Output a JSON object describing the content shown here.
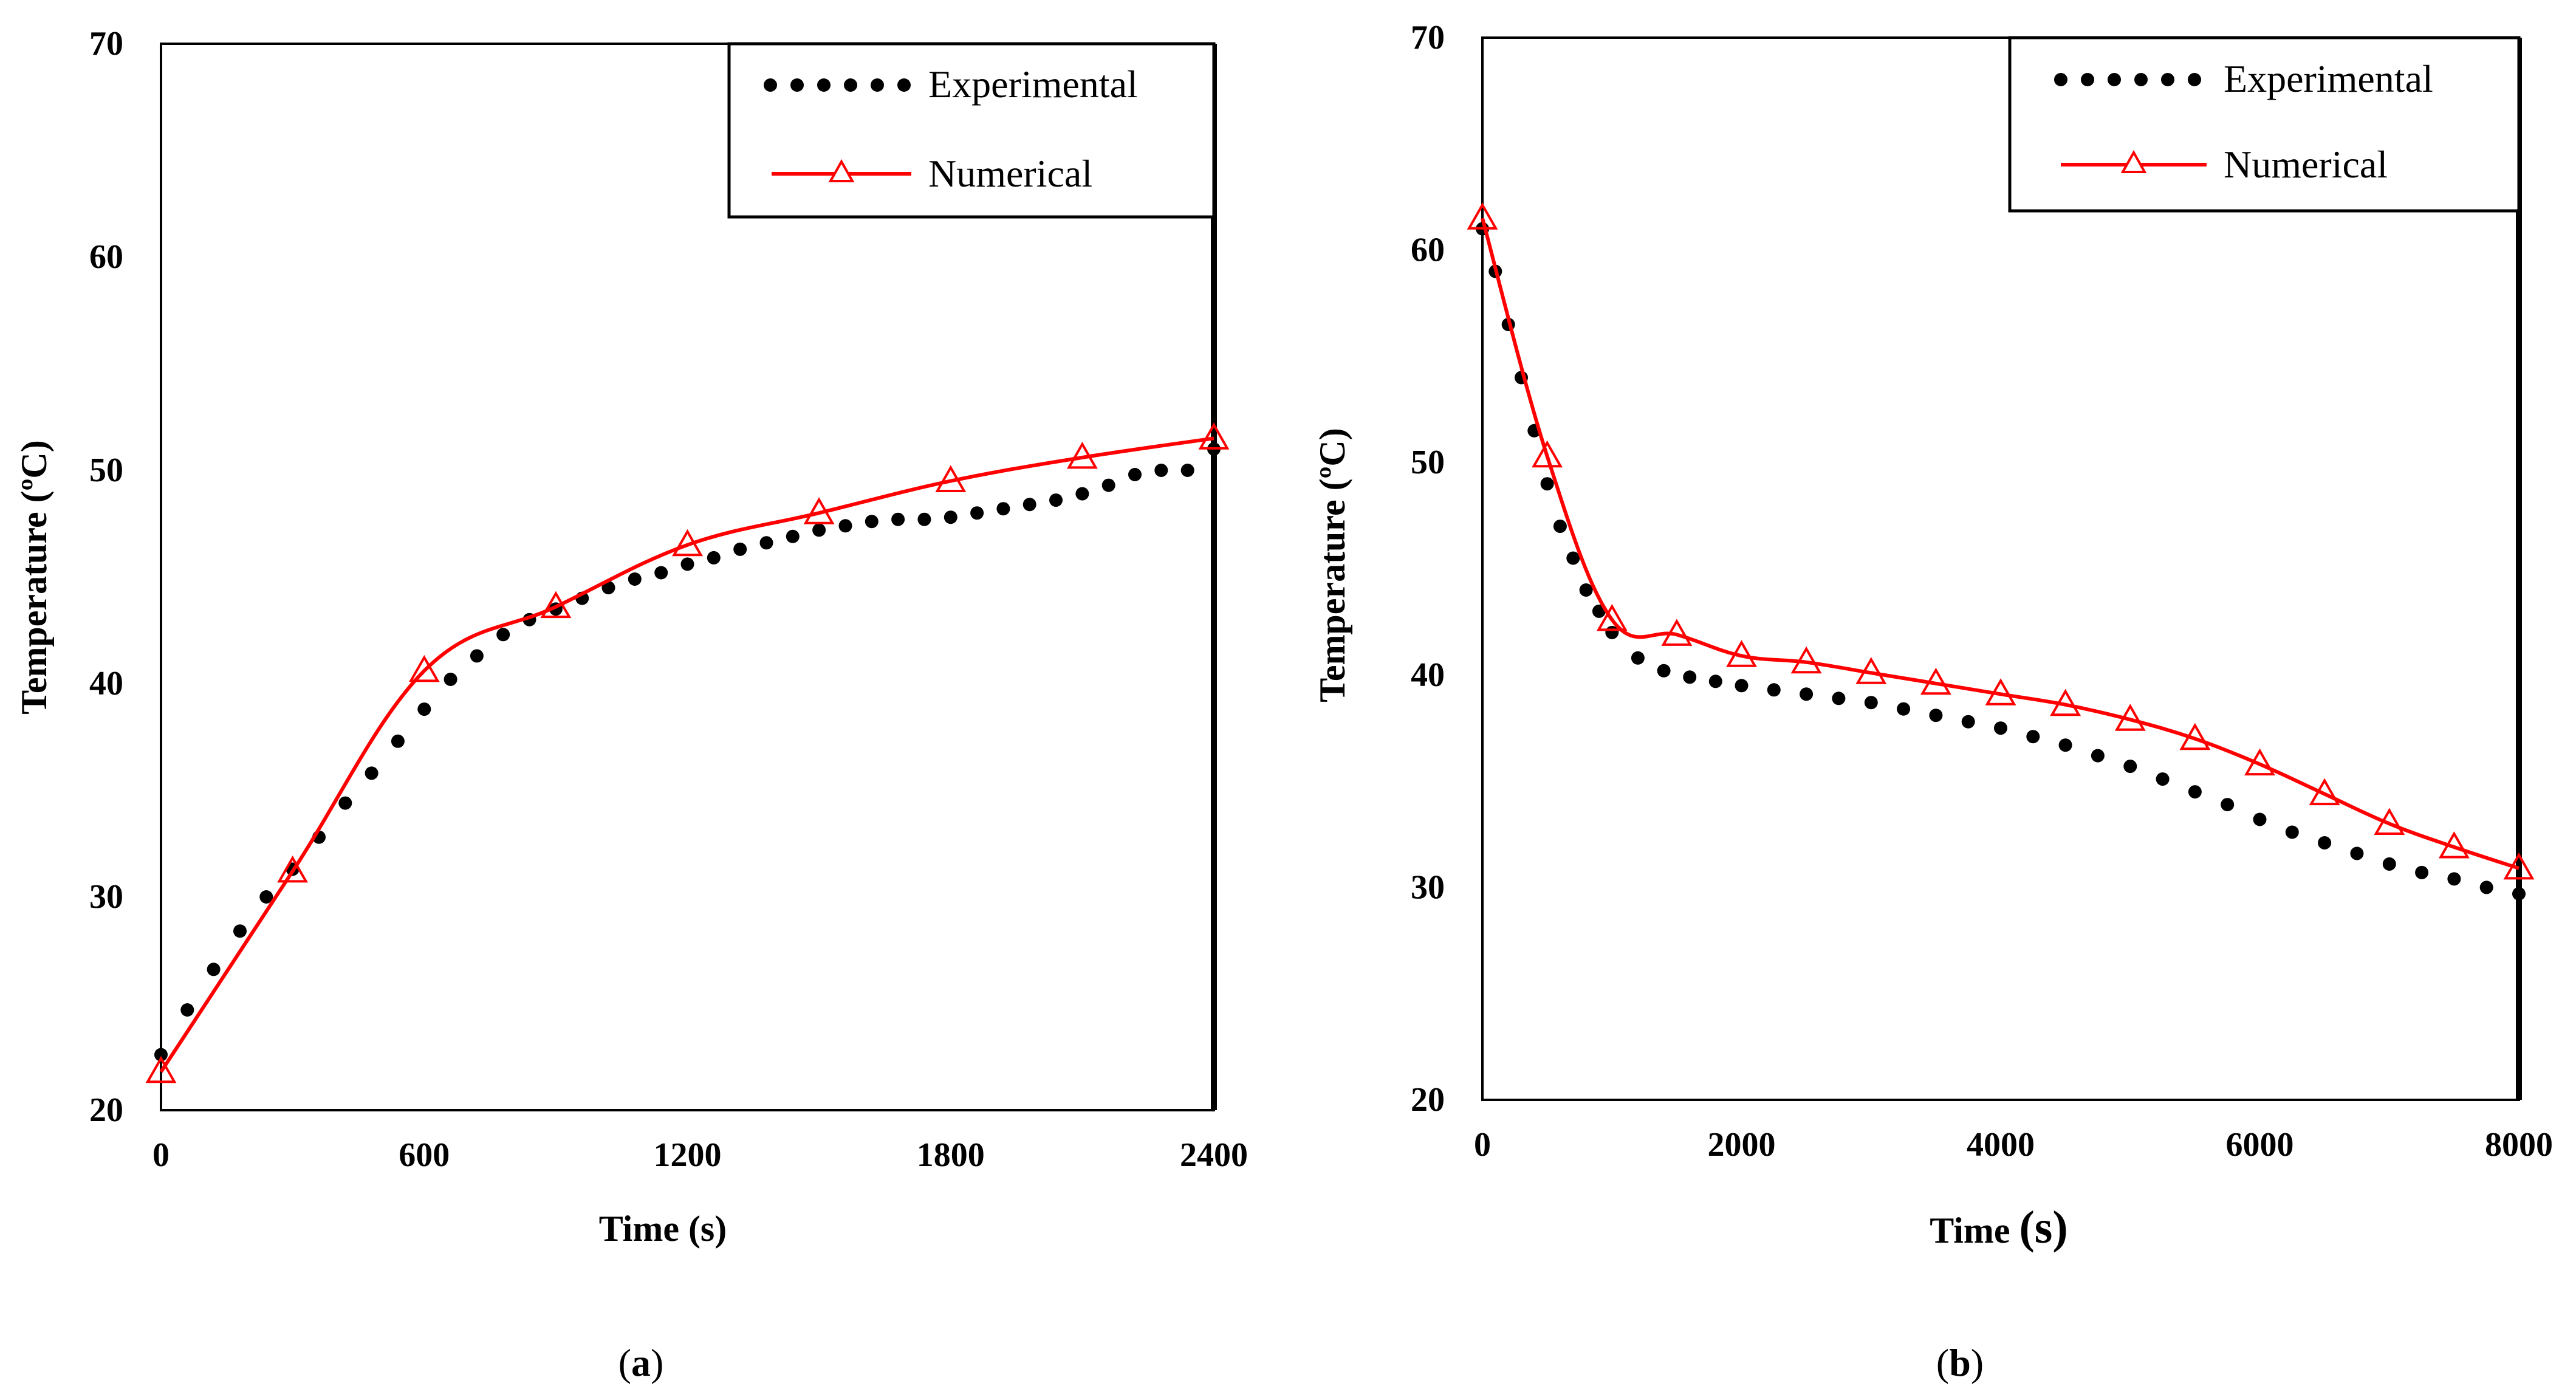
{
  "colors": {
    "experimental": "#000000",
    "numerical": "#ff0000",
    "axes": "#000000"
  },
  "chart_data": [
    {
      "type": "line",
      "panel_label_open": "(",
      "panel_label_letter": "a",
      "panel_label_close": ")",
      "xlabel": "Time (s)",
      "ylabel": "Temperature (ºC)",
      "xlim": [
        0,
        2400
      ],
      "ylim": [
        20,
        70
      ],
      "xticks": [
        0,
        600,
        1200,
        1800,
        2400
      ],
      "yticks": [
        20,
        30,
        40,
        50,
        60,
        70
      ],
      "legend_position": "top-right",
      "series": [
        {
          "name": "Experimental",
          "style": "dotted",
          "x": [
            0,
            60,
            120,
            180,
            240,
            300,
            360,
            420,
            480,
            540,
            600,
            660,
            720,
            780,
            840,
            900,
            960,
            1020,
            1080,
            1140,
            1200,
            1260,
            1320,
            1380,
            1440,
            1500,
            1560,
            1620,
            1680,
            1740,
            1800,
            1860,
            1920,
            1980,
            2040,
            2100,
            2160,
            2220,
            2280,
            2340,
            2400
          ],
          "y": [
            22.6,
            24.7,
            26.6,
            28.4,
            30.0,
            31.3,
            32.8,
            34.4,
            35.8,
            37.3,
            38.8,
            40.2,
            41.3,
            42.3,
            43.0,
            43.5,
            44.0,
            44.5,
            44.9,
            45.2,
            45.6,
            45.9,
            46.3,
            46.6,
            46.9,
            47.2,
            47.4,
            47.6,
            47.7,
            47.7,
            47.8,
            48.0,
            48.2,
            48.4,
            48.6,
            48.9,
            49.3,
            49.8,
            50.0,
            50.0,
            51.0
          ]
        },
        {
          "name": "Numerical",
          "style": "solid-triangles",
          "x": [
            0,
            300,
            600,
            900,
            1200,
            1500,
            1800,
            2100,
            2400
          ],
          "y": [
            21.8,
            31.2,
            40.6,
            43.6,
            46.5,
            48.0,
            49.5,
            50.6,
            51.5
          ]
        }
      ]
    },
    {
      "type": "line",
      "panel_label_open": "(",
      "panel_label_letter": "b",
      "panel_label_close": ")",
      "xlabel_main": "Time ",
      "xlabel_unit": "(s)",
      "ylabel": "Temperature (ºC)",
      "xlim": [
        0,
        8000
      ],
      "ylim": [
        20,
        70
      ],
      "xticks": [
        0,
        2000,
        4000,
        6000,
        8000
      ],
      "yticks": [
        20,
        30,
        40,
        50,
        60,
        70
      ],
      "legend_position": "top-right",
      "series": [
        {
          "name": "Experimental",
          "style": "dotted",
          "x": [
            0,
            100,
            200,
            300,
            400,
            500,
            600,
            700,
            800,
            900,
            1000,
            1200,
            1400,
            1600,
            1800,
            2000,
            2250,
            2500,
            2750,
            3000,
            3250,
            3500,
            3750,
            4000,
            4250,
            4500,
            4750,
            5000,
            5250,
            5500,
            5750,
            6000,
            6250,
            6500,
            6750,
            7000,
            7250,
            7500,
            7750,
            8000
          ],
          "y": [
            61.0,
            59.0,
            56.5,
            54.0,
            51.5,
            49.0,
            47.0,
            45.5,
            44.0,
            43.0,
            42.0,
            40.8,
            40.2,
            39.9,
            39.7,
            39.5,
            39.3,
            39.1,
            38.9,
            38.7,
            38.4,
            38.1,
            37.8,
            37.5,
            37.1,
            36.7,
            36.2,
            35.7,
            35.1,
            34.5,
            33.9,
            33.2,
            32.6,
            32.1,
            31.6,
            31.1,
            30.7,
            30.4,
            30.0,
            29.7
          ]
        },
        {
          "name": "Numerical",
          "style": "solid-triangles",
          "x": [
            0,
            500,
            1000,
            1500,
            2000,
            2500,
            3000,
            3500,
            4000,
            4500,
            5000,
            5500,
            6000,
            6500,
            7000,
            7500,
            8000
          ],
          "y": [
            61.5,
            50.3,
            42.6,
            41.9,
            40.9,
            40.6,
            40.1,
            39.6,
            39.1,
            38.6,
            37.9,
            37.0,
            35.8,
            34.4,
            33.0,
            31.9,
            30.9
          ]
        }
      ]
    }
  ]
}
